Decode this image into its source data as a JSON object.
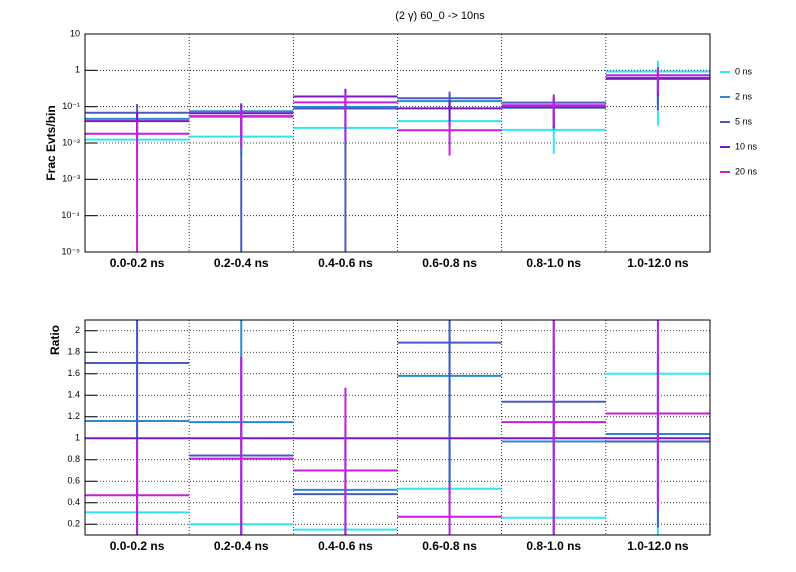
{
  "chart_data": [
    {
      "type": "step",
      "title": "(2 γ) 60_0 -> 10ns",
      "y_label": "Frac Evts/bin",
      "log_y": true,
      "grid": true,
      "legend": "right",
      "categories": [
        "0.0-0.2 ns",
        "0.2-0.4 ns",
        "0.4-0.6 ns",
        "0.6-0.8 ns",
        "0.8-1.0 ns",
        "1.0-12.0 ns"
      ],
      "ylim": [
        1e-05,
        10
      ],
      "yticks": [
        {
          "value": 1e-05,
          "label": "10⁻⁵"
        },
        {
          "value": 0.0001,
          "label": "10⁻⁴"
        },
        {
          "value": 0.001,
          "label": "10⁻³"
        },
        {
          "value": 0.01,
          "label": "10⁻²"
        },
        {
          "value": 0.1,
          "label": "10⁻¹"
        },
        1,
        10
      ],
      "series": [
        {
          "name": "0 ns",
          "color": "#2fe6f2",
          "values": [
            0.0124,
            0.015,
            0.026,
            0.04,
            0.023,
            0.93
          ],
          "errors": [
            0.006,
            0.01,
            0.018,
            0.03,
            0.018,
            0.9
          ]
        },
        {
          "name": "2 ns",
          "color": "#2a8ad0",
          "values": [
            0.046,
            0.075,
            0.099,
            0.142,
            0.093,
            0.62
          ],
          "errors": [
            0.03,
            0.05,
            0.08,
            0.08,
            0.07,
            0.5
          ]
        },
        {
          "name": "5 ns",
          "color": "#4a5bc0",
          "values": [
            0.068,
            0.055,
            0.089,
            0.17,
            0.129,
            0.58
          ],
          "errors": [
            0.05,
            0.06,
            0.1,
            0.09,
            0.09,
            0.5
          ]
        },
        {
          "name": "10 ns",
          "color": "#7a18c8",
          "values": [
            0.04,
            0.066,
            0.19,
            0.09,
            0.096,
            0.6
          ],
          "errors": [
            0.03,
            0.05,
            0.12,
            0.06,
            0.07,
            0.4
          ]
        },
        {
          "name": "20 ns",
          "color": "#c81ed6",
          "values": [
            0.018,
            0.053,
            0.131,
            0.0225,
            0.109,
            0.73
          ],
          "errors": [
            0.02,
            0.045,
            0.12,
            0.018,
            0.08,
            0.5
          ]
        }
      ]
    },
    {
      "type": "step",
      "y_label": "Ratio",
      "log_y": false,
      "grid": true,
      "categories": [
        "0.0-0.2 ns",
        "0.2-0.4 ns",
        "0.4-0.6 ns",
        "0.6-0.8 ns",
        "0.8-1.0 ns",
        "1.0-12.0 ns"
      ],
      "ylim": [
        0.1,
        2.1
      ],
      "yticks": [
        0.2,
        0.4,
        0.6,
        0.8,
        1,
        1.2,
        1.4,
        1.6,
        1.8,
        2
      ],
      "series": [
        {
          "color": "#2fe6f2",
          "values": [
            0.31,
            0.2,
            0.15,
            0.53,
            0.26,
            1.6
          ],
          "errors": [
            0.3,
            0.2,
            0.1,
            0.4,
            0.2,
            1.5
          ]
        },
        {
          "color": "#2a8ad0",
          "values": [
            1.16,
            1.15,
            0.52,
            1.58,
            0.97,
            1.04
          ],
          "errors": [
            1.5,
            1.5,
            0.6,
            1.0,
            0.9,
            0.6
          ]
        },
        {
          "color": "#4a5bc0",
          "values": [
            1.7,
            0.84,
            0.48,
            1.89,
            1.34,
            0.97
          ],
          "errors": [
            1.5,
            0.9,
            0.5,
            1.4,
            1.2,
            0.8
          ]
        },
        {
          "color": "#7a18c8",
          "values": [
            1,
            1,
            1,
            1,
            1,
            1
          ],
          "errors": [
            0,
            0,
            0,
            0,
            0,
            0
          ]
        },
        {
          "color": "#c81ed6",
          "values": [
            0.47,
            0.81,
            0.7,
            0.27,
            1.15,
            1.23
          ],
          "errors": [
            0.5,
            0.95,
            0.77,
            0.3,
            1.1,
            0.9
          ]
        }
      ]
    }
  ]
}
